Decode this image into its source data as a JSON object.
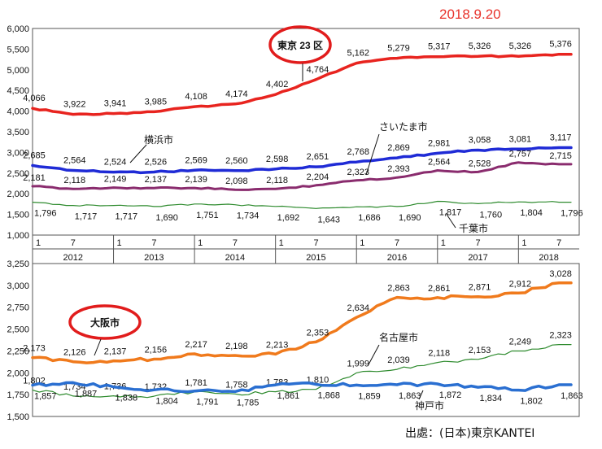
{
  "header": {
    "date": "2018.9.20"
  },
  "footer": {
    "source": "出處：(日本)東京KANTEI"
  },
  "colors": {
    "tokyo": "#e8241f",
    "saitama": "#8a2c6e",
    "yokohama": "#1f2bd6",
    "chiba": "#2e8b2e",
    "osaka": "#f07a1c",
    "nagoya": "#2e8b2e",
    "kobe": "#2a6fd1",
    "highlight": "#e11c1c"
  },
  "chart_data": [
    {
      "type": "line",
      "ylim": [
        1000,
        6000
      ],
      "yticks": [
        "1,000",
        "1,500",
        "2,000",
        "2,500",
        "3,000",
        "3,500",
        "4,000",
        "4,500",
        "5,000",
        "5,500",
        "6,000"
      ],
      "month_ticks": [
        "1",
        "7"
      ],
      "years": [
        "2012",
        "2013",
        "2014",
        "2015",
        "2016",
        "2017",
        "2018"
      ],
      "series": [
        {
          "name": "東京 23 区",
          "color_key": "tokyo",
          "width": 3.5,
          "x": [
            2012.0,
            2012.5,
            2013.0,
            2013.5,
            2014.0,
            2014.5,
            2015.0,
            2015.5,
            2016.0,
            2016.5,
            2017.0,
            2017.5,
            2018.0,
            2018.5
          ],
          "values": [
            4066,
            3922,
            3941,
            3985,
            4108,
            4174,
            4402,
            4764,
            5162,
            5279,
            5317,
            5326,
            5326,
            5376
          ],
          "labels": [
            "4,066",
            "3,922",
            "3,941",
            "3,985",
            "4,108",
            "4,174",
            "4,402",
            "4,764",
            "5,162",
            "5,279",
            "5,317",
            "5,326",
            "5,326",
            "5,376"
          ]
        },
        {
          "name": "横浜市",
          "color_key": "yokohama",
          "width": 3.5,
          "x": [
            2012.0,
            2012.5,
            2013.0,
            2013.5,
            2014.0,
            2014.5,
            2015.0,
            2015.5,
            2016.0,
            2016.5,
            2017.0,
            2017.5,
            2018.0,
            2018.5
          ],
          "values": [
            2685,
            2564,
            2524,
            2526,
            2569,
            2560,
            2598,
            2651,
            2768,
            2869,
            2981,
            3058,
            3081,
            3117
          ],
          "labels": [
            "2,685",
            "2,564",
            "2,524",
            "2,526",
            "2,569",
            "2,560",
            "2,598",
            "2,651",
            "2,768",
            "2,869",
            "2,981",
            "3,058",
            "3,081",
            "3,117"
          ]
        },
        {
          "name": "さいたま市",
          "color_key": "saitama",
          "width": 3,
          "x": [
            2012.0,
            2012.5,
            2013.0,
            2013.5,
            2014.0,
            2014.5,
            2015.0,
            2015.5,
            2016.0,
            2016.5,
            2017.0,
            2017.5,
            2018.0,
            2018.5
          ],
          "values": [
            2181,
            2118,
            2149,
            2137,
            2139,
            2098,
            2118,
            2204,
            2323,
            2393,
            2564,
            2528,
            2757,
            2715
          ],
          "labels": [
            "2,181",
            "2,118",
            "2,149",
            "2,137",
            "2,139",
            "2,098",
            "2,118",
            "2,204",
            "2,323",
            "2,393",
            "2,564",
            "2,528",
            "2,757",
            "2,715"
          ]
        },
        {
          "name": "千葉市",
          "color_key": "chiba",
          "width": 1.2,
          "x": [
            2012.0,
            2012.5,
            2013.0,
            2013.5,
            2014.0,
            2014.5,
            2015.0,
            2015.5,
            2016.0,
            2016.5,
            2017.0,
            2017.5,
            2018.0,
            2018.5
          ],
          "values": [
            1796,
            1717,
            1717,
            1690,
            1751,
            1734,
            1692,
            1643,
            1686,
            1690,
            1817,
            1760,
            1804,
            1796
          ],
          "labels": [
            "1,796",
            "1,717",
            "1,717",
            "1,690",
            "1,751",
            "1,734",
            "1,692",
            "1,643",
            "1,686",
            "1,690",
            "1,817",
            "1,760",
            "1,804",
            "1,796"
          ]
        }
      ],
      "annotations": [
        "東京 23 区",
        "横浜市",
        "さいたま市",
        "千葉市"
      ]
    },
    {
      "type": "line",
      "ylim": [
        1500,
        3250
      ],
      "yticks": [
        "1,500",
        "1,750",
        "2,000",
        "2,250",
        "2,500",
        "2,750",
        "3,000",
        "3,250"
      ],
      "series": [
        {
          "name": "大阪市",
          "color_key": "osaka",
          "width": 3.5,
          "x": [
            2012.0,
            2012.5,
            2013.0,
            2013.5,
            2014.0,
            2014.5,
            2015.0,
            2015.5,
            2016.0,
            2016.5,
            2017.0,
            2017.5,
            2018.0,
            2018.5
          ],
          "values": [
            2173,
            2126,
            2137,
            2156,
            2217,
            2198,
            2213,
            2353,
            2634,
            2863,
            2861,
            2871,
            2912,
            3028
          ],
          "labels": [
            "2,173",
            "2,126",
            "2,137",
            "2,156",
            "2,217",
            "2,198",
            "2,213",
            "2,353",
            "2,634",
            "2,863",
            "2,861",
            "2,871",
            "2,912",
            "3,028"
          ]
        },
        {
          "name": "名古屋市",
          "color_key": "nagoya",
          "width": 1.2,
          "x": [
            2012.0,
            2012.5,
            2013.0,
            2013.5,
            2014.0,
            2014.5,
            2015.0,
            2015.5,
            2016.0,
            2016.5,
            2017.0,
            2017.5,
            2018.0,
            2018.5
          ],
          "values": [
            1802,
            1734,
            1736,
            1732,
            1781,
            1758,
            1783,
            1810,
            1999,
            2039,
            2118,
            2153,
            2249,
            2323
          ],
          "labels": [
            "1,802",
            "1,734",
            "1,736",
            "1,732",
            "1,781",
            "1,758",
            "1,783",
            "1,810",
            "1,999",
            "2,039",
            "2,118",
            "2,153",
            "2,249",
            "2,323"
          ]
        },
        {
          "name": "神戸市",
          "color_key": "kobe",
          "width": 3.5,
          "x": [
            2012.0,
            2012.5,
            2013.0,
            2013.5,
            2014.0,
            2014.5,
            2015.0,
            2015.5,
            2016.0,
            2016.5,
            2017.0,
            2017.5,
            2018.0,
            2018.5
          ],
          "values": [
            1857,
            1887,
            1838,
            1804,
            1791,
            1785,
            1861,
            1868,
            1859,
            1863,
            1872,
            1834,
            1802,
            1863
          ],
          "labels": [
            "1,857",
            "1,887",
            "1,838",
            "1,804",
            "1,791",
            "1,785",
            "1,861",
            "1,868",
            "1,859",
            "1,863",
            "1,872",
            "1,834",
            "1,802",
            "1,863"
          ]
        }
      ],
      "annotations": [
        "大阪市",
        "名古屋市",
        "神戸市"
      ]
    }
  ]
}
